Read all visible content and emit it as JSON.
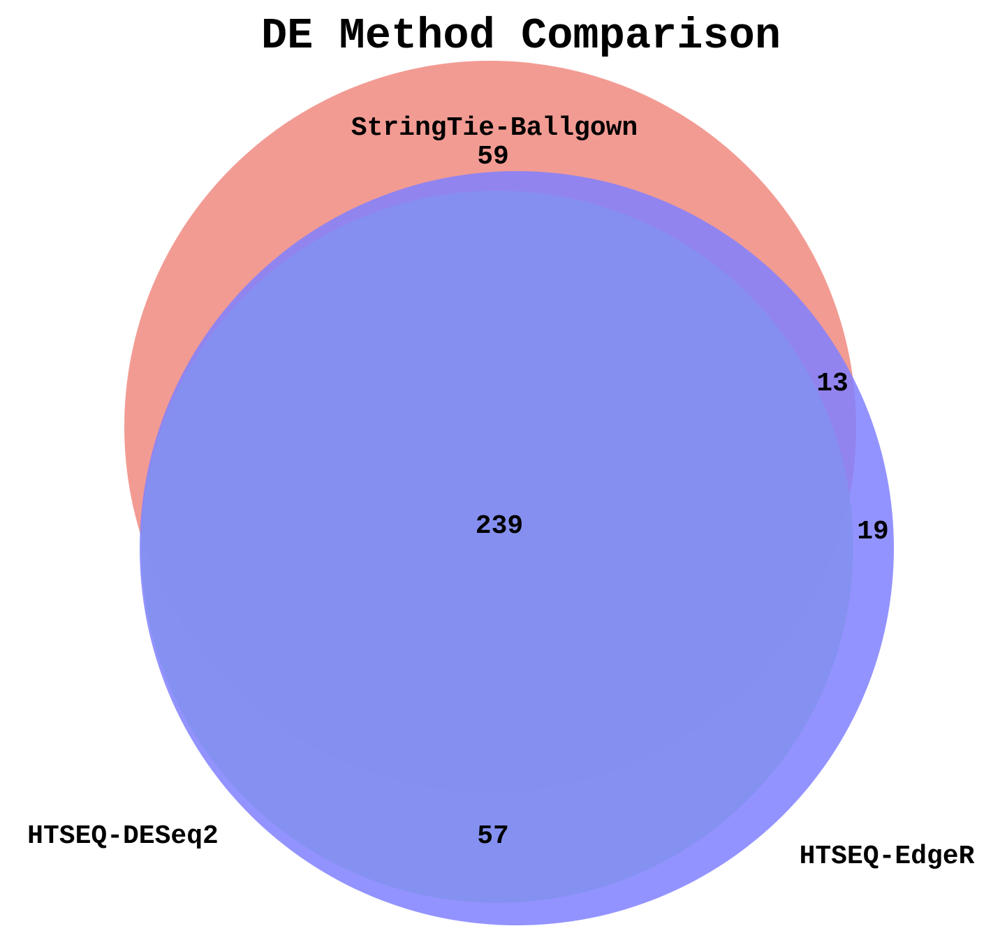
{
  "chart_data": {
    "type": "venn",
    "title": "DE Method Comparison",
    "sets": [
      {
        "name": "StringTie-Ballgown",
        "color": "#f08a80"
      },
      {
        "name": "HTSEQ-DESeq2",
        "color": "#90ee90"
      },
      {
        "name": "HTSEQ-EdgeR",
        "color": "#8080ff"
      }
    ],
    "regions": [
      {
        "sets": [
          "StringTie-Ballgown"
        ],
        "value": "59"
      },
      {
        "sets": [
          "StringTie-Ballgown",
          "HTSEQ-EdgeR"
        ],
        "value": "13"
      },
      {
        "sets": [
          "StringTie-Ballgown",
          "HTSEQ-DESeq2",
          "HTSEQ-EdgeR"
        ],
        "value": "239"
      },
      {
        "sets": [
          "HTSEQ-EdgeR"
        ],
        "value": "19"
      },
      {
        "sets": [
          "HTSEQ-DESeq2",
          "HTSEQ-EdgeR"
        ],
        "value": "57"
      }
    ]
  }
}
